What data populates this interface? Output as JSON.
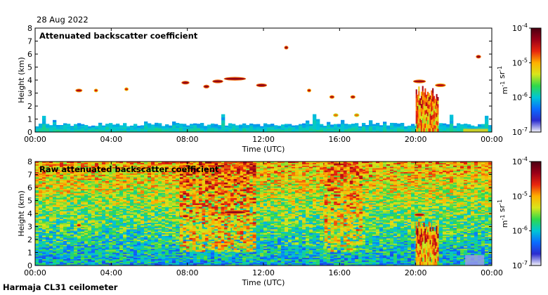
{
  "date_label": "28 Aug 2022",
  "instrument_label": "Harmaja CL31 ceilometer",
  "colorscale": [
    "#f4f4fb",
    "#2b2ccf",
    "#0a6cff",
    "#00c6d6",
    "#2fd94a",
    "#d8e61c",
    "#ffb000",
    "#e8260e",
    "#9b0018",
    "#4a0012"
  ],
  "chart_data": [
    {
      "type": "heatmap",
      "title": "Attenuated backscatter coefficient",
      "xlabel": "Time (UTC)",
      "ylabel": "Height (km)",
      "x_ticks": [
        "00:00",
        "04:00",
        "08:00",
        "12:00",
        "16:00",
        "20:00",
        "00:00"
      ],
      "y_ticks": [
        0,
        1,
        2,
        3,
        4,
        5,
        6,
        7,
        8
      ],
      "xlim_hours": [
        0,
        24
      ],
      "ylim_km": [
        0,
        8
      ],
      "colorbar": {
        "ticks": [
          "10-7",
          "10-6",
          "10-5",
          "10-4"
        ],
        "tick_values": [
          -7,
          -6,
          -5,
          -4
        ],
        "label": "m-1 sr-1"
      },
      "features": [
        {
          "type": "boundary_layer",
          "from_hour": 0,
          "to_hour": 24,
          "top_km": 0.55,
          "level": 0.28
        },
        {
          "type": "layer",
          "hour": 2.3,
          "width_h": 0.3,
          "km": 3.2,
          "level": 0.86
        },
        {
          "type": "layer",
          "hour": 3.2,
          "width_h": 0.1,
          "km": 3.2,
          "level": 0.8
        },
        {
          "type": "layer",
          "hour": 4.8,
          "width_h": 0.1,
          "km": 3.3,
          "level": 0.8
        },
        {
          "type": "layer",
          "hour": 7.9,
          "width_h": 0.35,
          "km": 3.8,
          "level": 0.9
        },
        {
          "type": "layer",
          "hour": 9,
          "width_h": 0.25,
          "km": 3.5,
          "level": 0.9
        },
        {
          "type": "layer",
          "hour": 9.6,
          "width_h": 0.5,
          "km": 3.9,
          "level": 0.9
        },
        {
          "type": "layer",
          "hour": 10.5,
          "width_h": 1.1,
          "km": 4.1,
          "level": 0.9
        },
        {
          "type": "layer",
          "hour": 11.9,
          "width_h": 0.5,
          "km": 3.6,
          "level": 0.9
        },
        {
          "type": "layer",
          "hour": 13.2,
          "width_h": 0.05,
          "km": 6.5,
          "level": 0.9
        },
        {
          "type": "layer",
          "hour": 14.4,
          "width_h": 0.1,
          "km": 3.2,
          "level": 0.85
        },
        {
          "type": "layer",
          "hour": 15.6,
          "width_h": 0.2,
          "km": 2.7,
          "level": 0.86
        },
        {
          "type": "layer",
          "hour": 16.7,
          "width_h": 0.2,
          "km": 2.7,
          "level": 0.86
        },
        {
          "type": "layer",
          "hour": 15.8,
          "width_h": 0.2,
          "km": 1.3,
          "level": 0.72
        },
        {
          "type": "layer",
          "hour": 16.9,
          "width_h": 0.2,
          "km": 1.3,
          "level": 0.72
        },
        {
          "type": "layer",
          "hour": 20.2,
          "width_h": 0.6,
          "km": 3.9,
          "level": 0.88
        },
        {
          "type": "layer",
          "hour": 21.3,
          "width_h": 0.5,
          "km": 3.6,
          "level": 0.85
        },
        {
          "type": "layer",
          "hour": 23.3,
          "width_h": 0.2,
          "km": 5.8,
          "level": 0.9
        },
        {
          "type": "column",
          "from_hour": 20,
          "to_hour": 21.2,
          "top_km": 3.4,
          "level": 0.62
        },
        {
          "type": "surface_patch",
          "from_hour": 22.5,
          "to_hour": 23.8,
          "top_km": 0.25,
          "level": 0.6
        }
      ]
    },
    {
      "type": "heatmap",
      "title": "Raw attenuated backscatter coefficient",
      "xlabel": "Time (UTC)",
      "ylabel": "Height (km)",
      "x_ticks": [
        "00:00",
        "04:00",
        "08:00",
        "12:00",
        "16:00",
        "20:00",
        "00:00"
      ],
      "y_ticks": [
        0,
        1,
        2,
        3,
        4,
        5,
        6,
        7,
        8
      ],
      "xlim_hours": [
        0,
        24
      ],
      "ylim_km": [
        0,
        8
      ],
      "colorbar": {
        "ticks": [
          "10-7",
          "10-6",
          "10-5",
          "10-4"
        ],
        "tick_values": [
          -7,
          -6,
          -5,
          -4
        ],
        "label": "m-1 sr-1"
      },
      "features": [
        {
          "type": "noise_background",
          "level_bottom": 0.3,
          "level_top": 0.66
        },
        {
          "type": "noise_band",
          "from_hour": 7.6,
          "to_hour": 11.6,
          "level": 0.78
        },
        {
          "type": "noise_band",
          "from_hour": 15.2,
          "to_hour": 17.2,
          "level": 0.74
        },
        {
          "type": "layer",
          "hour": 10.5,
          "width_h": 1.1,
          "km": 4.1,
          "level": 0.9
        },
        {
          "type": "layer",
          "hour": 7.9,
          "width_h": 0.3,
          "km": 3.8,
          "level": 0.86
        },
        {
          "type": "layer",
          "hour": 2.3,
          "width_h": 0.2,
          "km": 3.1,
          "level": 0.82
        },
        {
          "type": "layer",
          "hour": 20.2,
          "width_h": 0.5,
          "km": 3.9,
          "level": 0.86
        },
        {
          "type": "column",
          "from_hour": 20,
          "to_hour": 21.2,
          "top_km": 3.4,
          "level": 0.62
        },
        {
          "type": "surface_patch",
          "from_hour": 22.6,
          "to_hour": 23.6,
          "top_km": 0.8,
          "level": 0.05
        }
      ]
    }
  ]
}
